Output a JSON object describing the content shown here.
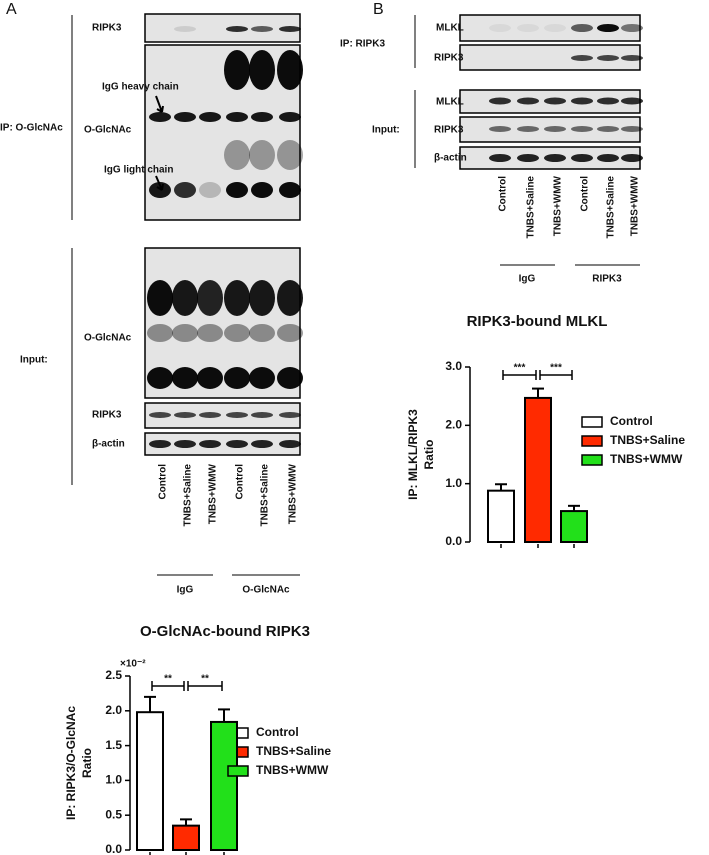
{
  "panels": {
    "A": {
      "label": "A",
      "ip_group": "IP: O-GlcNAc",
      "ip_rows": [
        "RIPK3",
        "O-GlcNAc"
      ],
      "annotations": [
        "IgG heavy chain",
        "IgG light chain"
      ],
      "input_group": "Input:",
      "input_rows": [
        "O-GlcNAc",
        "RIPK3",
        "β-actin"
      ],
      "lanes": [
        "Control",
        "TNBS+Saline",
        "TNBS+WMW",
        "Control",
        "TNBS+Saline",
        "TNBS+WMW"
      ],
      "lane_groups": [
        "IgG",
        "O-GlcNAc"
      ]
    },
    "B": {
      "label": "B",
      "ip_group": "IP: RIPK3",
      "ip_rows": [
        "MLKL",
        "RIPK3"
      ],
      "input_group": "Input:",
      "input_rows": [
        "MLKL",
        "RIPK3",
        "β-actin"
      ],
      "lanes": [
        "Control",
        "TNBS+Saline",
        "TNBS+WMW",
        "Control",
        "TNBS+Saline",
        "TNBS+WMW"
      ],
      "lane_groups": [
        "IgG",
        "RIPK3"
      ]
    }
  },
  "chart_data": [
    {
      "type": "bar",
      "title": "O-GlcNAc-bound RIPK3",
      "y_label": [
        "IP: RIPK3/O-GlcNAc",
        "Ratio"
      ],
      "axis_multiplier": "×10⁻²",
      "categories": [
        "Control",
        "TNBS+Saline",
        "TNBS+WMW"
      ],
      "colors": [
        "#ffffff",
        "#ff2a00",
        "#22e01a"
      ],
      "values": [
        1.98,
        0.35,
        1.84
      ],
      "errors": [
        0.22,
        0.09,
        0.18
      ],
      "ylim": [
        0,
        2.5
      ],
      "yticks": [
        {
          "value": 0,
          "label": "0.0"
        },
        0.5,
        {
          "value": 1,
          "label": "1.0"
        },
        1.5,
        {
          "value": 2,
          "label": "2.0"
        },
        2.5
      ],
      "significance": [
        {
          "between": [
            "Control",
            "TNBS+Saline"
          ],
          "label": "**"
        },
        {
          "between": [
            "TNBS+Saline",
            "TNBS+WMW"
          ],
          "label": "**"
        }
      ]
    },
    {
      "type": "bar",
      "title": "RIPK3-bound MLKL",
      "y_label": [
        "IP: MLKL/RIPK3",
        "Ratio"
      ],
      "categories": [
        "Control",
        "TNBS+Saline",
        "TNBS+WMW"
      ],
      "colors": [
        "#ffffff",
        "#ff2a00",
        "#22e01a"
      ],
      "values": [
        0.88,
        2.47,
        0.53
      ],
      "errors": [
        0.11,
        0.16,
        0.09
      ],
      "ylim": [
        0,
        3
      ],
      "yticks": [
        {
          "value": 0,
          "label": "0.0"
        },
        {
          "value": 1,
          "label": "1.0"
        },
        {
          "value": 2,
          "label": "2.0"
        },
        {
          "value": 3,
          "label": "3.0"
        }
      ],
      "significance": [
        {
          "between": [
            "Control",
            "TNBS+Saline"
          ],
          "label": "***"
        },
        {
          "between": [
            "TNBS+Saline",
            "TNBS+WMW"
          ],
          "label": "***"
        }
      ]
    }
  ]
}
